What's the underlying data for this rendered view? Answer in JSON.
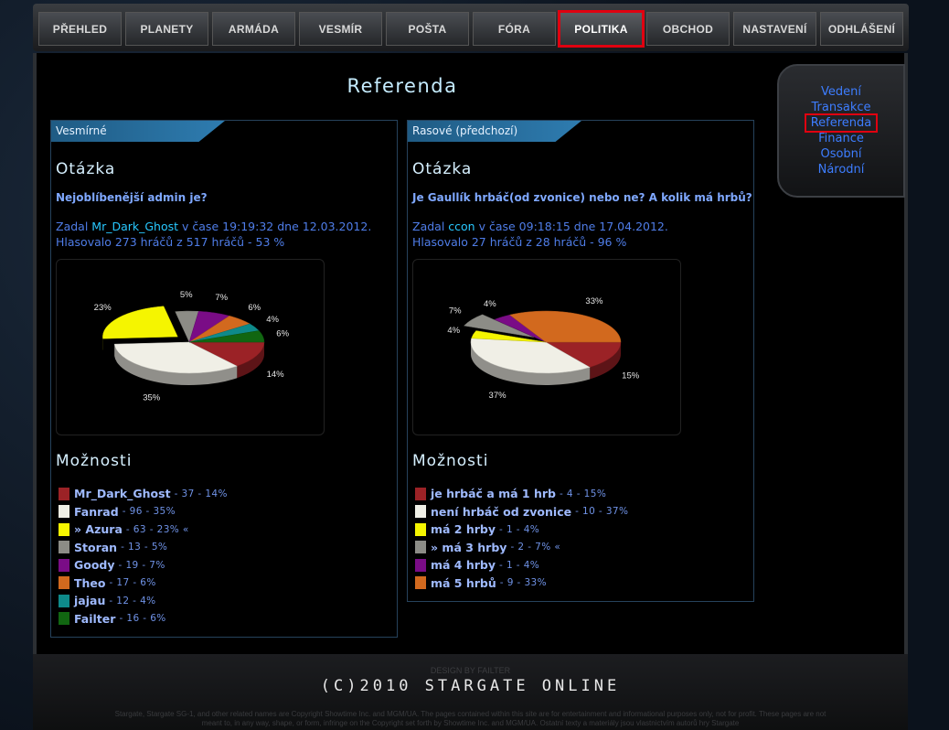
{
  "nav": {
    "items": [
      "PŘEHLED",
      "PLANETY",
      "ARMÁDA",
      "VESMÍR",
      "POŠTA",
      "FÓRA",
      "POLITIKA",
      "OBCHOD",
      "NASTAVENÍ",
      "ODHLÁŠENÍ"
    ],
    "highlighted": 6
  },
  "side_menu": {
    "items": [
      "Vedení",
      "Transakce",
      "Referenda",
      "Finance",
      "Osobní",
      "Národní"
    ],
    "highlighted": 2
  },
  "page_title": "Referenda",
  "polls": [
    {
      "tab": "Vesmírné",
      "question_heading": "Otázka",
      "question": "Nejoblíbenější admin je?",
      "asked_prefix": "Zadal",
      "author": "Mr_Dark_Ghost",
      "asked_suffix": "v čase 19:19:32 dne 12.03.2012.",
      "turnout": "Hlasovalo 273 hráčů z 517 hráčů - 53 %",
      "options_heading": "Možnosti",
      "selected": 2,
      "options": [
        {
          "name": "Mr_Dark_Ghost",
          "detail": "- 37 - 14%",
          "share": 14,
          "share_label": "14%",
          "color": "#9b2226"
        },
        {
          "name": "Fanrad",
          "detail": "- 96 - 35%",
          "share": 35,
          "share_label": "35%",
          "color": "#f0efe6"
        },
        {
          "name": "» Azura",
          "detail": "- 63 - 23% «",
          "share": 23,
          "share_label": "23%",
          "color": "#f5f500"
        },
        {
          "name": "Storan",
          "detail": "- 13 - 5%",
          "share": 5,
          "share_label": "5%",
          "color": "#8c8c86"
        },
        {
          "name": "Goody",
          "detail": "- 19 - 7%",
          "share": 7,
          "share_label": "7%",
          "color": "#7a0c86"
        },
        {
          "name": "Theo",
          "detail": "- 17 - 6%",
          "share": 6,
          "share_label": "6%",
          "color": "#d2691e"
        },
        {
          "name": "jajau",
          "detail": "- 12 - 4%",
          "share": 4,
          "share_label": "4%",
          "color": "#0e8a8a"
        },
        {
          "name": "Failter",
          "detail": "- 16 - 6%",
          "share": 6,
          "share_label": "6%",
          "color": "#116611"
        }
      ]
    },
    {
      "tab": "Rasové (předchozí)",
      "question_heading": "Otázka",
      "question": "Je Gaullík hrbáč(od zvonice) nebo ne? A kolik má hrbů?",
      "asked_prefix": "Zadal",
      "author": "ccon",
      "asked_suffix": "v čase 09:18:15 dne 17.04.2012.",
      "turnout": "Hlasovalo 27 hráčů z 28 hráčů - 96 %",
      "options_heading": "Možnosti",
      "selected": 3,
      "options": [
        {
          "name": "je hrbáč a má 1 hrb",
          "detail": "- 4 - 15%",
          "share": 15,
          "share_label": "15%",
          "color": "#9b2226"
        },
        {
          "name": "není hrbáč od zvonice",
          "detail": "- 10 - 37%",
          "share": 37,
          "share_label": "37%",
          "color": "#f0efe6"
        },
        {
          "name": "má 2 hrby",
          "detail": "- 1 - 4%",
          "share": 4,
          "share_label": "4%",
          "color": "#f5f500"
        },
        {
          "name": "» má 3 hrby",
          "detail": "- 2 - 7% «",
          "share": 7,
          "share_label": "7%",
          "color": "#8c8c86"
        },
        {
          "name": "má 4 hrby",
          "detail": "- 1 - 4%",
          "share": 4,
          "share_label": "4%",
          "color": "#7a0c86"
        },
        {
          "name": "má 5 hrbů",
          "detail": "- 9 - 33%",
          "share": 33,
          "share_label": "33%",
          "color": "#d2691e"
        }
      ]
    }
  ],
  "footer": {
    "design": "DESIGN BY FAILTER",
    "logo": "(C)2010 STARGATE ONLINE",
    "copyright": "Stargate, Stargate SG-1, and other related names are Copyright Showtime Inc. and MGM/UA. The pages contained within this site are for entertainment and informational purposes only, not for profit. These pages are not meant to, in any way, shape, or form, infringe on the Copyright set forth by Showtime Inc. and MGM/UA. Ostatní texty a materiály jsou vlastnictvím autorů hry Stargate"
  }
}
